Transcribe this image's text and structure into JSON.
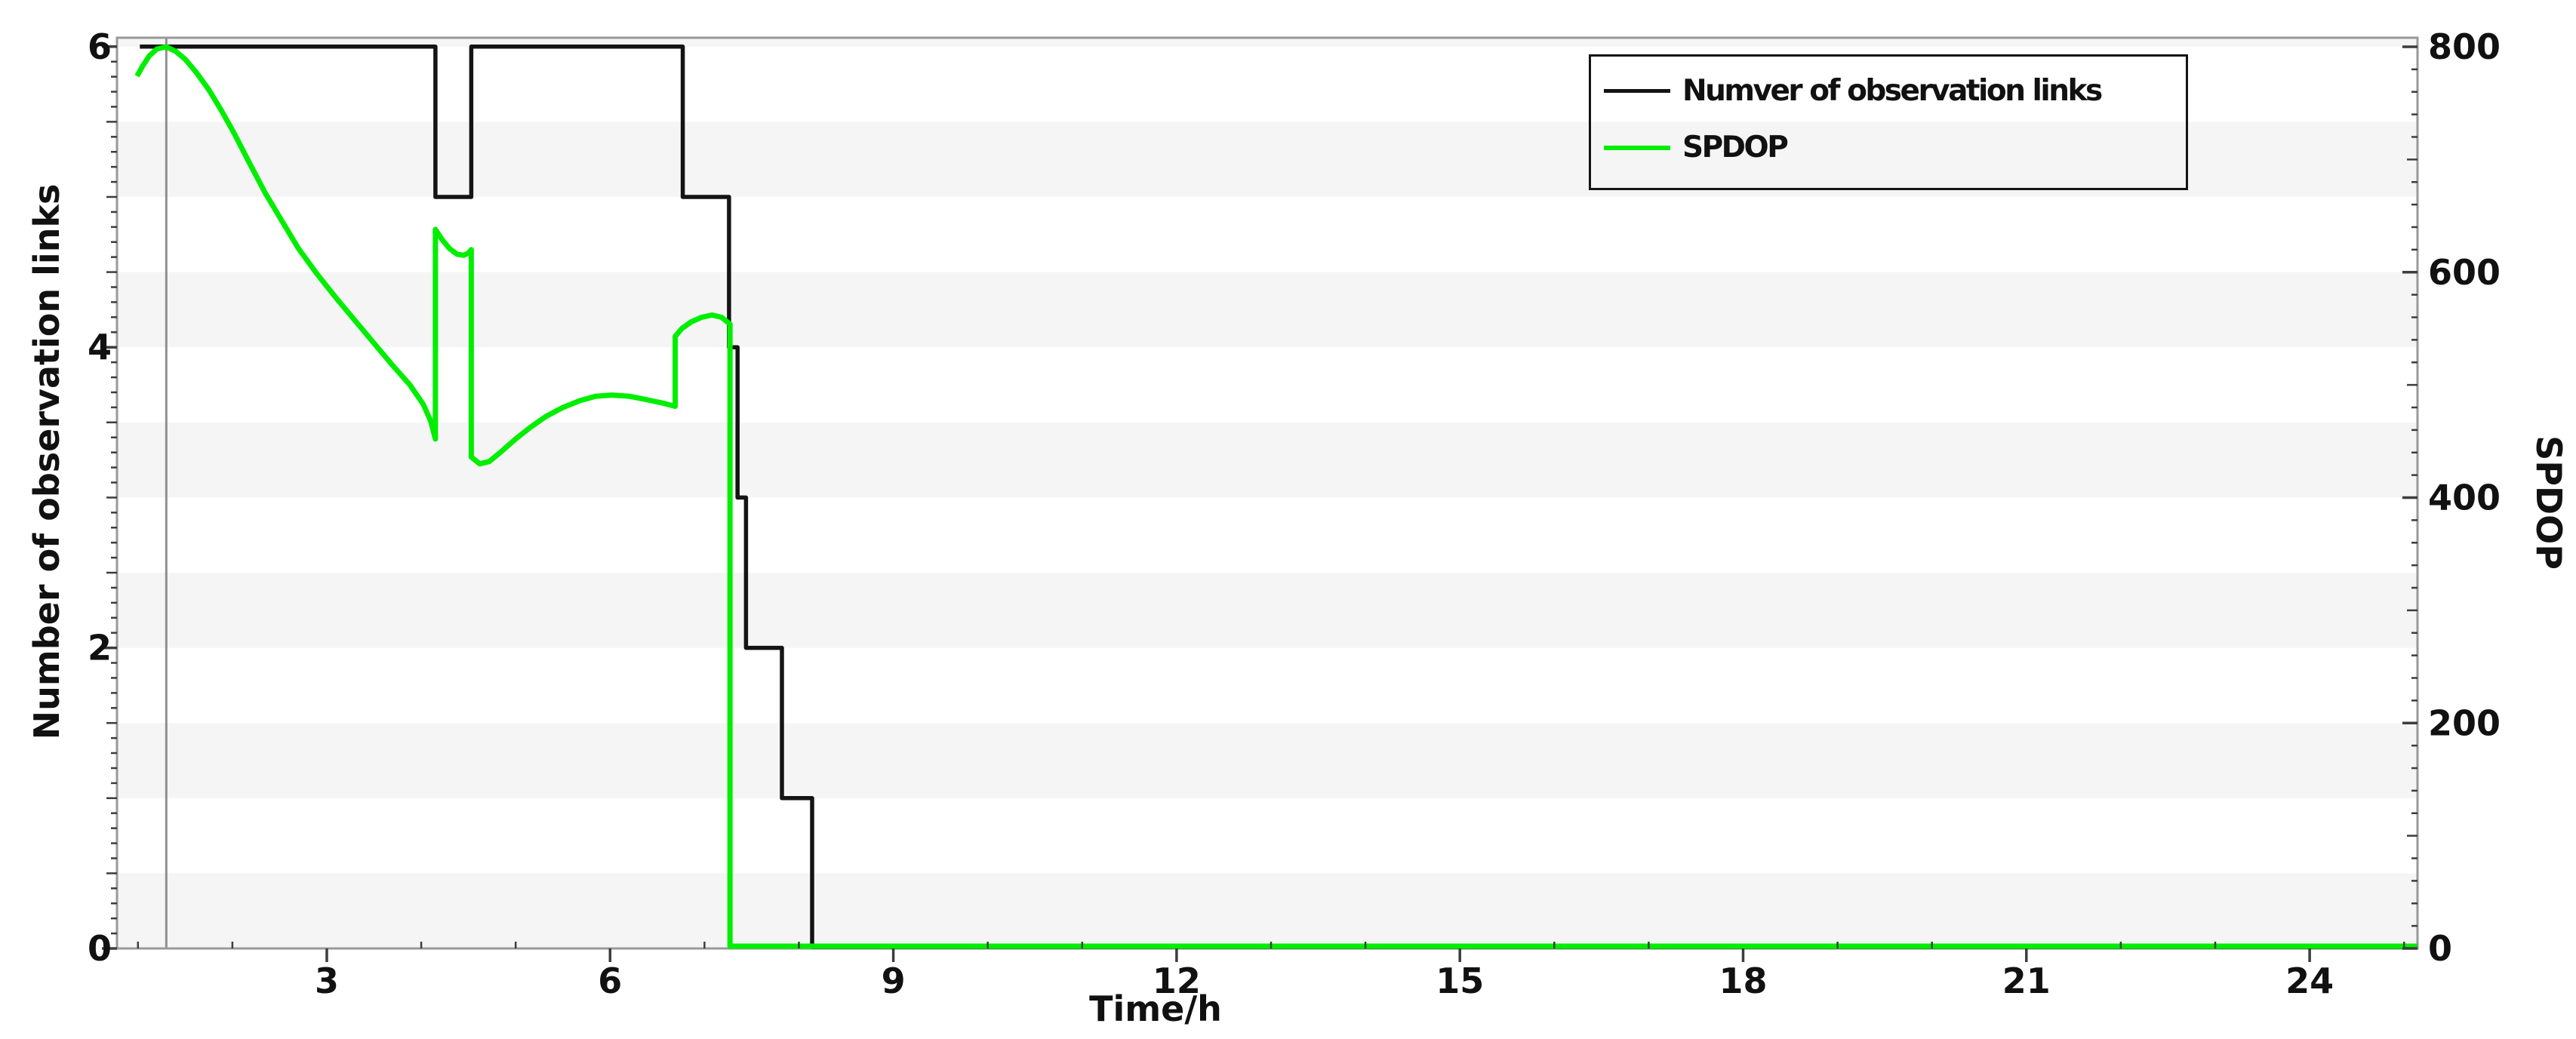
{
  "figure": {
    "background": "#ffffff",
    "frame_color": "#999999",
    "stripe_color": "#f5f5f5",
    "tick_color": "#3d3d3d",
    "label_color": "#111111"
  },
  "marker_line": {
    "time": 1.3,
    "color": "#8f8f8f"
  },
  "axes": {
    "x": {
      "label": "Time/h",
      "range": [
        0.78,
        25.14
      ],
      "major_ticks": [
        3,
        6,
        9,
        12,
        15,
        18,
        21,
        24
      ],
      "minor_tick_step": 1
    },
    "y_left": {
      "label": "Number of observation links",
      "range": [
        0,
        6
      ],
      "major_ticks": [
        0,
        2,
        4,
        6
      ],
      "medium_tick_step": 0.5,
      "minor_tick_step": 0.1
    },
    "y_right": {
      "label": "SPDOP",
      "range": [
        0,
        800
      ],
      "major_ticks": [
        0,
        200,
        400,
        600,
        800
      ],
      "medium_tick_step": 100,
      "minor_tick_step": 20
    }
  },
  "legend": {
    "items": [
      {
        "label": "Numver of observation links",
        "color": "#141414"
      },
      {
        "label": "SPDOP",
        "color": "#00ee00"
      }
    ]
  },
  "chart_data": {
    "type": "line",
    "title": "",
    "xlabel": "Time/h",
    "ylabel_left": "Number of observation links",
    "ylabel_right": "SPDOP",
    "xlim": [
      0.78,
      25.14
    ],
    "ylim_left": [
      0,
      6.06
    ],
    "ylim_right": [
      0,
      808
    ],
    "grid": "alternating horizontal bands every 0.5 left-axis units",
    "legend_position": "upper right inside plot",
    "series": [
      {
        "name": "Numver of observation links",
        "axis": "left",
        "color": "#141414",
        "width": 5.5,
        "points": [
          [
            1.02,
            6
          ],
          [
            4.15,
            6
          ],
          [
            4.15,
            5
          ],
          [
            4.53,
            5
          ],
          [
            4.53,
            6
          ],
          [
            6.77,
            6
          ],
          [
            6.77,
            5
          ],
          [
            7.26,
            5
          ],
          [
            7.26,
            4
          ],
          [
            7.35,
            4
          ],
          [
            7.35,
            3
          ],
          [
            7.44,
            3
          ],
          [
            7.44,
            2
          ],
          [
            7.82,
            2
          ],
          [
            7.82,
            1
          ],
          [
            8.14,
            1
          ],
          [
            8.14,
            0
          ],
          [
            25.14,
            0
          ]
        ]
      },
      {
        "name": "SPDOP",
        "axis": "right",
        "color": "#00ee00",
        "width": 7,
        "points": [
          [
            0.99,
            774
          ],
          [
            1.05,
            783
          ],
          [
            1.12,
            792
          ],
          [
            1.2,
            798
          ],
          [
            1.3,
            800
          ],
          [
            1.4,
            796
          ],
          [
            1.5,
            789
          ],
          [
            1.62,
            777
          ],
          [
            1.75,
            762
          ],
          [
            1.88,
            744
          ],
          [
            2.02,
            723
          ],
          [
            2.18,
            697
          ],
          [
            2.35,
            670
          ],
          [
            2.52,
            646
          ],
          [
            2.7,
            621
          ],
          [
            2.9,
            598
          ],
          [
            3.1,
            577
          ],
          [
            3.3,
            557
          ],
          [
            3.5,
            537
          ],
          [
            3.7,
            517
          ],
          [
            3.88,
            500
          ],
          [
            4.02,
            483
          ],
          [
            4.1,
            468
          ],
          [
            4.15,
            452
          ],
          [
            4.15,
            638
          ],
          [
            4.22,
            629
          ],
          [
            4.3,
            621
          ],
          [
            4.38,
            616
          ],
          [
            4.45,
            615
          ],
          [
            4.5,
            617
          ],
          [
            4.53,
            620
          ],
          [
            4.53,
            436
          ],
          [
            4.62,
            430
          ],
          [
            4.72,
            432
          ],
          [
            4.85,
            441
          ],
          [
            5.0,
            452
          ],
          [
            5.15,
            462
          ],
          [
            5.32,
            472
          ],
          [
            5.5,
            480
          ],
          [
            5.68,
            486
          ],
          [
            5.85,
            490
          ],
          [
            6.02,
            491
          ],
          [
            6.2,
            490
          ],
          [
            6.38,
            487
          ],
          [
            6.55,
            484
          ],
          [
            6.69,
            481
          ],
          [
            6.69,
            543
          ],
          [
            6.76,
            550
          ],
          [
            6.86,
            556
          ],
          [
            6.97,
            560
          ],
          [
            7.08,
            562
          ],
          [
            7.18,
            560
          ],
          [
            7.27,
            554
          ],
          [
            7.27,
            0
          ],
          [
            25.14,
            0
          ]
        ]
      }
    ]
  }
}
